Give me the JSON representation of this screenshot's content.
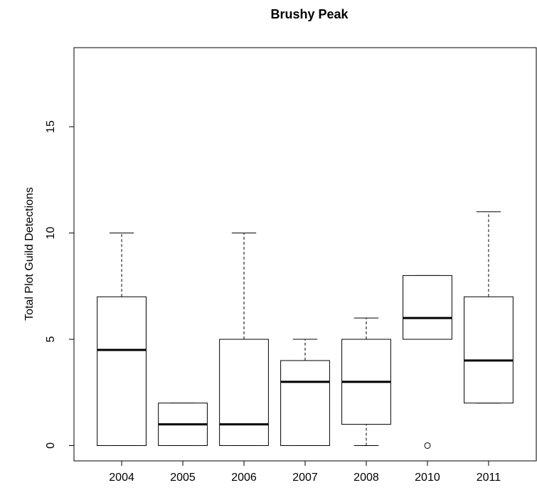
{
  "chart_data": {
    "type": "box",
    "title": "Brushy Peak",
    "y_label": "Total Plot Guild Detections",
    "categories": [
      "2004",
      "2005",
      "2006",
      "2007",
      "2008",
      "2010",
      "2011"
    ],
    "min": [
      0,
      0,
      0,
      0,
      0,
      5,
      2
    ],
    "q1": [
      0,
      0,
      0,
      0,
      1,
      5,
      2
    ],
    "median": [
      4.5,
      1,
      1,
      3,
      3,
      6,
      4
    ],
    "q3": [
      7,
      2,
      5,
      4,
      5,
      8,
      7
    ],
    "max": [
      10,
      2,
      10,
      5,
      6,
      8,
      11
    ],
    "outliers": [
      [],
      [],
      [],
      [],
      [],
      [
        0
      ],
      []
    ],
    "ylim": [
      -0.72,
      18.72
    ],
    "yticks": [
      0,
      5,
      10,
      15
    ]
  }
}
